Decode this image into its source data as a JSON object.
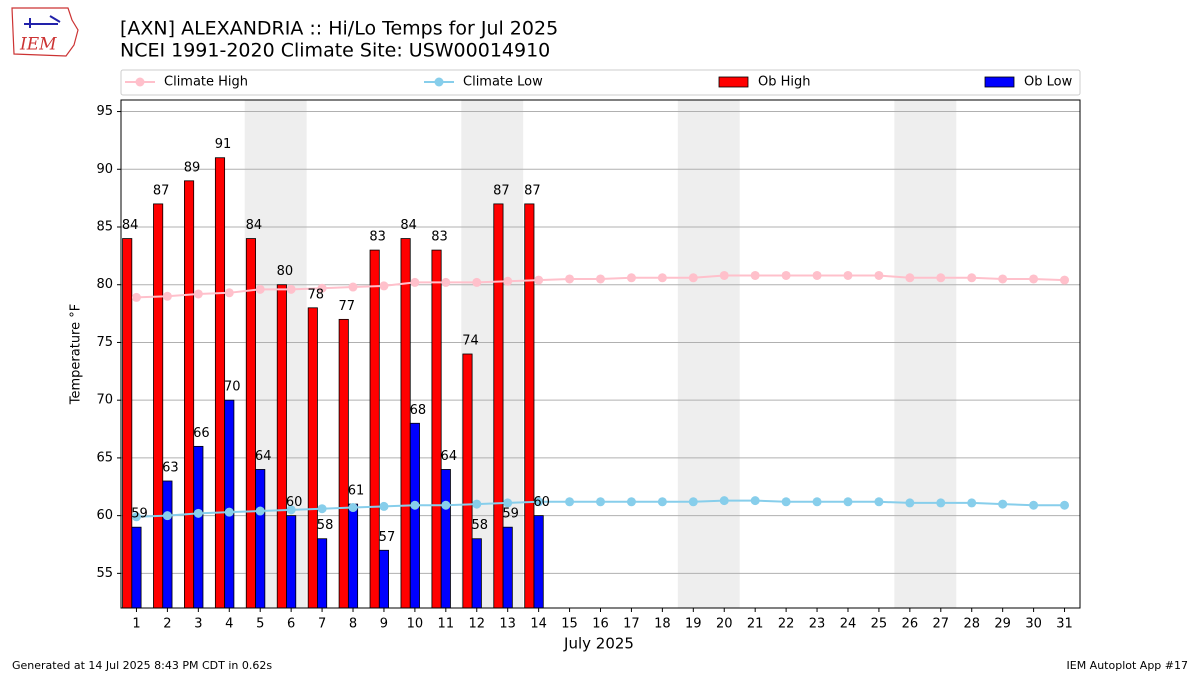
{
  "chart_data": {
    "type": "bar",
    "logo_text": "IEM",
    "title": "[AXN] ALEXANDRIA :: Hi/Lo Temps for Jul 2025",
    "subtitle": "NCEI 1991-2020 Climate Site: USW00014910",
    "xlabel": "July 2025",
    "ylabel": "Temperature °F",
    "footer_left": "Generated at 14 Jul 2025 8:43 PM CDT in 0.62s",
    "footer_right": "IEM Autoplot App #17",
    "categories": [
      "1",
      "2",
      "3",
      "4",
      "5",
      "6",
      "7",
      "8",
      "9",
      "10",
      "11",
      "12",
      "13",
      "14",
      "15",
      "16",
      "17",
      "18",
      "19",
      "20",
      "21",
      "22",
      "23",
      "24",
      "25",
      "26",
      "27",
      "28",
      "29",
      "30",
      "31"
    ],
    "ylim": [
      52,
      96
    ],
    "yticks": [
      55,
      60,
      65,
      70,
      75,
      80,
      85,
      90,
      95
    ],
    "grid": true,
    "shade_x": [
      [
        4.5,
        6.5
      ],
      [
        11.5,
        13.5
      ],
      [
        18.5,
        20.5
      ],
      [
        25.5,
        27.5
      ]
    ],
    "shade_color": "#eeeeee",
    "series": [
      {
        "name": "Climate High",
        "type": "line",
        "color": "#ffc0cb",
        "values": [
          78.9,
          79.0,
          79.2,
          79.3,
          79.6,
          79.6,
          79.7,
          79.8,
          79.9,
          80.2,
          80.2,
          80.2,
          80.3,
          80.4,
          80.5,
          80.5,
          80.6,
          80.6,
          80.6,
          80.8,
          80.8,
          80.8,
          80.8,
          80.8,
          80.8,
          80.6,
          80.6,
          80.6,
          80.5,
          80.5,
          80.4
        ]
      },
      {
        "name": "Climate Low",
        "type": "line",
        "color": "#87ceeb",
        "values": [
          59.9,
          60.0,
          60.2,
          60.3,
          60.4,
          60.5,
          60.6,
          60.7,
          60.8,
          60.9,
          60.9,
          61.0,
          61.1,
          61.2,
          61.2,
          61.2,
          61.2,
          61.2,
          61.2,
          61.3,
          61.3,
          61.2,
          61.2,
          61.2,
          61.2,
          61.1,
          61.1,
          61.1,
          61.0,
          60.9,
          60.9
        ]
      },
      {
        "name": "Ob High",
        "type": "bar",
        "color": "#ff0000",
        "values": [
          84,
          87,
          89,
          91,
          84,
          80,
          78,
          77,
          83,
          84,
          83,
          74,
          87,
          87,
          null,
          null,
          null,
          null,
          null,
          null,
          null,
          null,
          null,
          null,
          null,
          null,
          null,
          null,
          null,
          null,
          null
        ]
      },
      {
        "name": "Ob Low",
        "type": "bar",
        "color": "#0000ff",
        "values": [
          59,
          63,
          66,
          70,
          64,
          60,
          58,
          61,
          57,
          68,
          64,
          58,
          59,
          60,
          null,
          null,
          null,
          null,
          null,
          null,
          null,
          null,
          null,
          null,
          null,
          null,
          null,
          null,
          null,
          null,
          null
        ]
      }
    ]
  }
}
